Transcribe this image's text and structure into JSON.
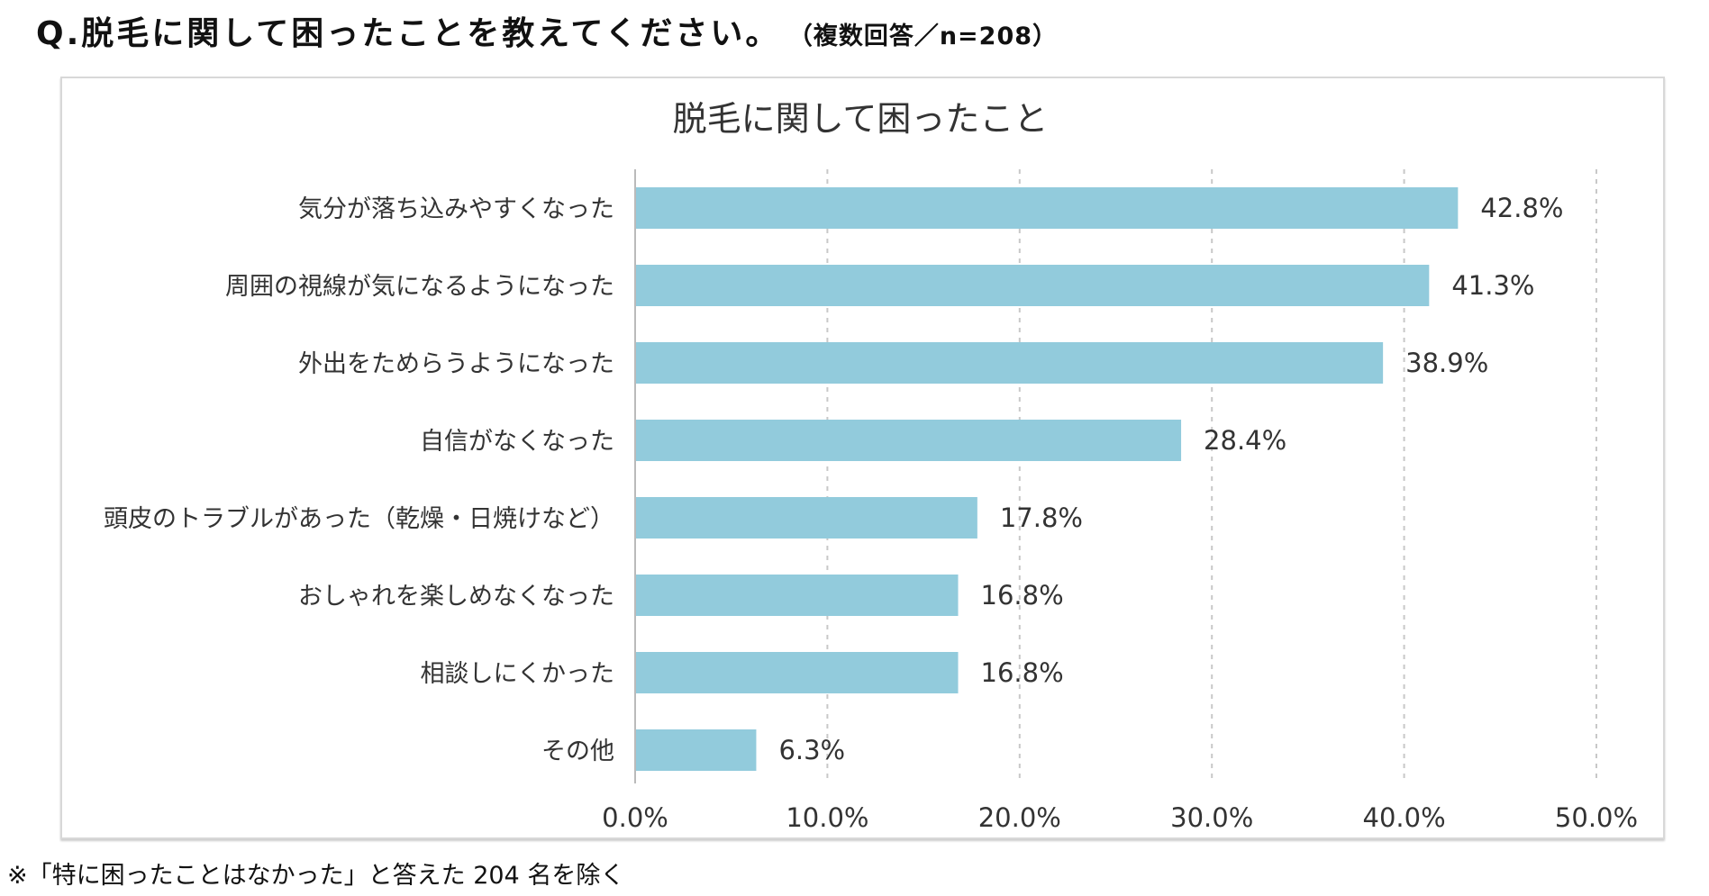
{
  "question": "Q.脱毛に関して困ったことを教えてください。",
  "question_note": "（複数回答／n=208）",
  "footnote": "※「特に困ったことはなかった」と答えた 204 名を除く",
  "chart_data": {
    "type": "bar",
    "orientation": "horizontal",
    "title": "脱毛に関して困ったこと",
    "categories": [
      "気分が落ち込みやすくなった",
      "周囲の視線が気になるようになった",
      "外出をためらうようになった",
      "自信がなくなった",
      "頭皮のトラブルがあった（乾燥・日焼けなど）",
      "おしゃれを楽しめなくなった",
      "相談しにくかった",
      "その他"
    ],
    "values": [
      42.8,
      41.3,
      38.9,
      28.4,
      17.8,
      16.8,
      16.8,
      6.3
    ],
    "value_labels": [
      "42.8%",
      "41.3%",
      "38.9%",
      "28.4%",
      "17.8%",
      "16.8%",
      "16.8%",
      "6.3%"
    ],
    "xlim": [
      0,
      50
    ],
    "xticks": [
      0,
      10,
      20,
      30,
      40,
      50
    ],
    "xtick_labels": [
      "0.0%",
      "10.0%",
      "20.0%",
      "30.0%",
      "40.0%",
      "50.0%"
    ],
    "grid": "vertical dashed",
    "bar_color": "#92CBDC"
  }
}
